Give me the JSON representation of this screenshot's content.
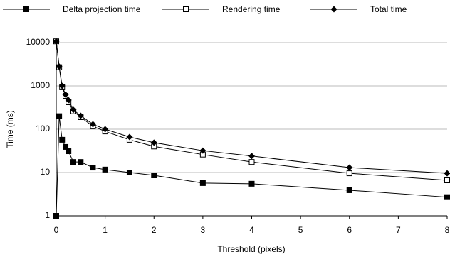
{
  "chart_data": {
    "type": "line",
    "x_label": "Threshold (pixels)",
    "y_label": "Time (ms)",
    "x": [
      0,
      0.06,
      0.12,
      0.19,
      0.25,
      0.35,
      0.5,
      0.75,
      1,
      1.5,
      2,
      3,
      4,
      6,
      8
    ],
    "series": [
      {
        "name": "Delta projection time",
        "color": "#000000",
        "marker": "square",
        "values": [
          1,
          200,
          57,
          39,
          31,
          17.5,
          17.5,
          13,
          11.7,
          10,
          8.6,
          5.7,
          5.5,
          3.9,
          2.7
        ]
      },
      {
        "name": "Rendering time",
        "color": "#000000",
        "marker": "open-square",
        "values": [
          10700,
          2700,
          930,
          590,
          420,
          260,
          190,
          117,
          89,
          57,
          40,
          26,
          17.5,
          9.6,
          6.6
        ]
      },
      {
        "name": "Total time",
        "color": "#000000",
        "marker": "diamond",
        "values": [
          10700,
          2800,
          1000,
          630,
          470,
          280,
          205,
          130,
          100,
          66,
          49,
          32,
          24,
          13,
          9.6
        ]
      }
    ],
    "xlim": [
      0,
      8
    ],
    "xticks": [
      0,
      1,
      2,
      3,
      4,
      5,
      6,
      7,
      8
    ],
    "ylim": [
      1,
      10000
    ],
    "yticks": [
      1,
      10,
      100,
      1000,
      10000
    ],
    "log_y": true,
    "grid": true,
    "legend": "top"
  }
}
